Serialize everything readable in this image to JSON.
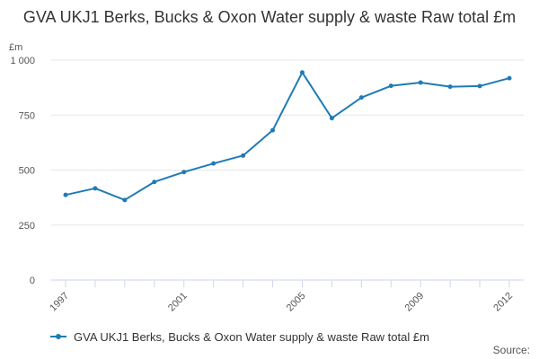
{
  "title": "GVA UKJ1 Berks, Bucks & Oxon Water supply & waste Raw total £m",
  "source_label": "Source:",
  "colors": {
    "series": "#1f7bb6",
    "grid": "#e6e6e6",
    "axis": "#ccd6eb"
  },
  "chart_data": {
    "type": "line",
    "title": "GVA UKJ1 Berks, Bucks & Oxon Water supply & waste Raw total £m",
    "ylabel": "£m",
    "xlabel": "",
    "ylim": [
      0,
      1000
    ],
    "yticks": [
      0,
      250,
      500,
      750,
      1000
    ],
    "ytick_labels": [
      "0",
      "250",
      "500",
      "750",
      "1 000"
    ],
    "xtick_labels": [
      "1997",
      "2001",
      "2005",
      "2009",
      "2012"
    ],
    "x": [
      1997,
      1998,
      1999,
      2000,
      2001,
      2002,
      2003,
      2004,
      2005,
      2006,
      2007,
      2008,
      2009,
      2010,
      2011,
      2012
    ],
    "grid": true,
    "legend_position": "bottom-left",
    "series": [
      {
        "name": "GVA UKJ1 Berks, Bucks & Oxon Water supply & waste Raw total £m",
        "values": [
          387,
          417,
          364,
          446,
          491,
          530,
          566,
          681,
          944,
          736,
          830,
          883,
          898,
          879,
          882,
          918
        ]
      }
    ]
  }
}
